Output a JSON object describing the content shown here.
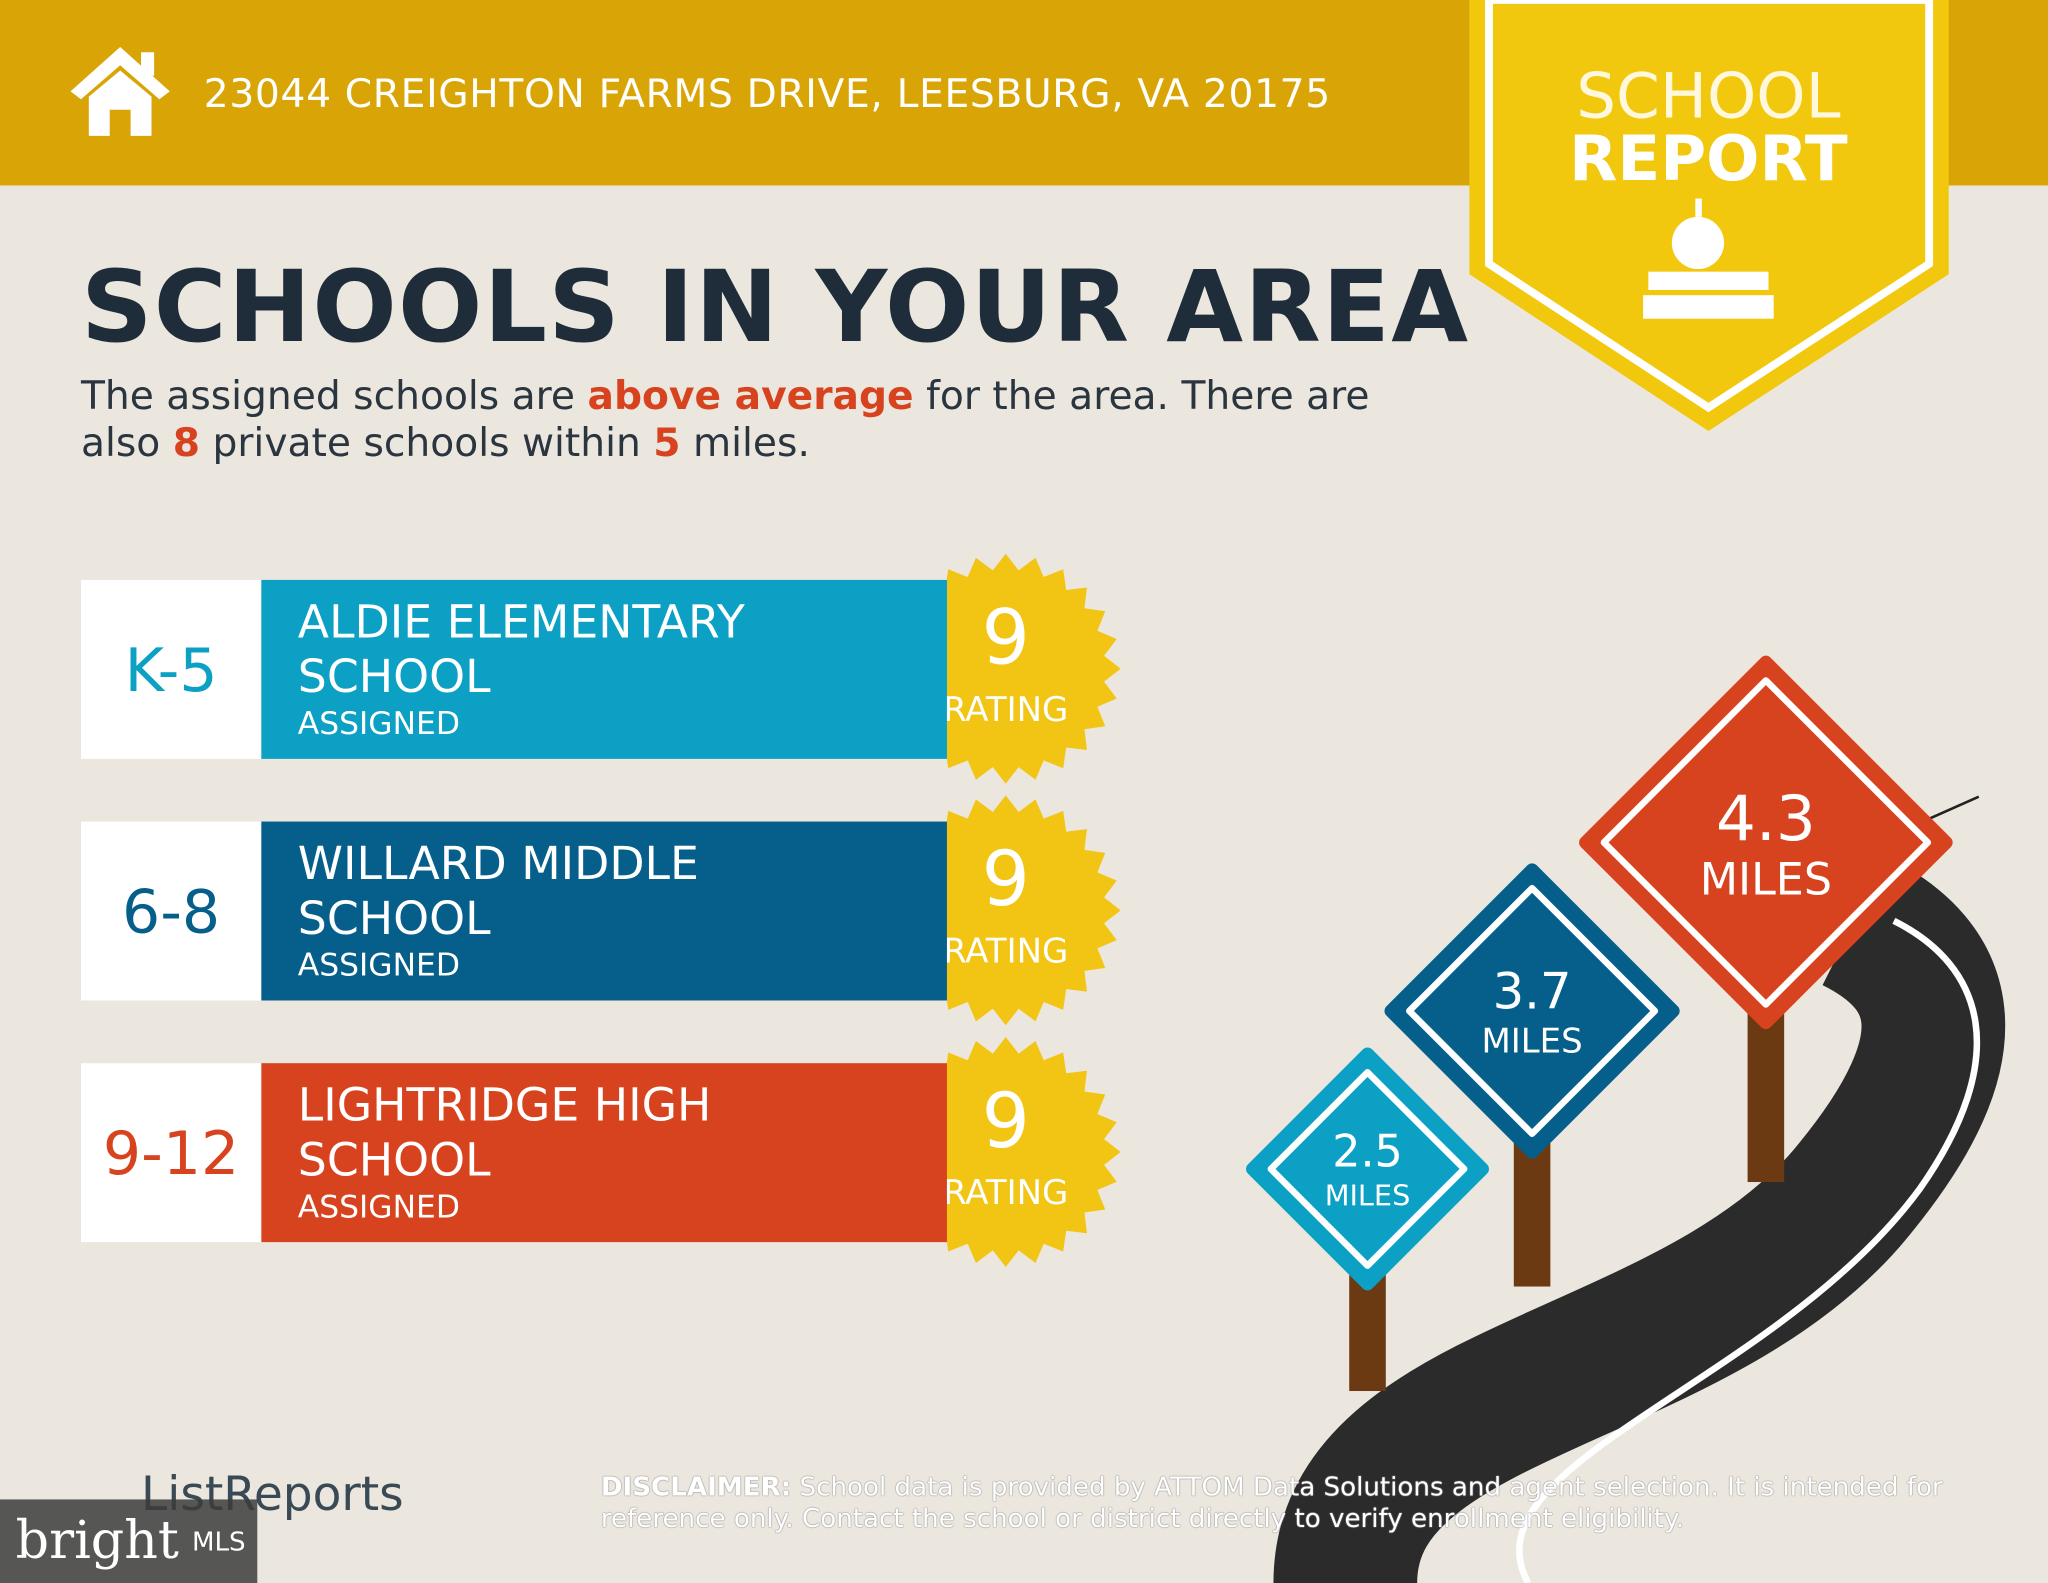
{
  "header": {
    "address": "23044 CREIGHTON FARMS DRIVE, LEESBURG, VA 20175",
    "badge": [
      "SCHOOL",
      "REPORT"
    ]
  },
  "title": "SCHOOLS IN YOUR AREA",
  "intro": [
    "The assigned schools are ",
    "above average",
    " for the area. There are also ",
    "8",
    " private schools within ",
    "5",
    " miles."
  ],
  "schools": [
    {
      "grade": "K-5",
      "name": "ALDIE ELEMENTARY SCHOOL",
      "status": "ASSIGNED",
      "rating": "9",
      "rating_label": "RATING"
    },
    {
      "grade": "6-8",
      "name": "WILLARD MIDDLE SCHOOL",
      "status": "ASSIGNED",
      "rating": "9",
      "rating_label": "RATING"
    },
    {
      "grade": "9-12",
      "name": "LIGHTRIDGE HIGH SCHOOL",
      "status": "ASSIGNED",
      "rating": "9",
      "rating_label": "RATING"
    }
  ],
  "signs": [
    {
      "distance": "2.5",
      "unit": "MILES"
    },
    {
      "distance": "3.7",
      "unit": "MILES"
    },
    {
      "distance": "4.3",
      "unit": "MILES"
    }
  ],
  "footer": {
    "logo": "ListReports",
    "disclaimer_label": "DISCLAIMER:",
    "disclaimer": " School data is provided by ATTOM Data Solutions and agent selection. It is intended for reference only. Contact the school or district directly to verify enrollment eligibility.",
    "watermark": "bright",
    "watermark_suffix": "MLS"
  }
}
